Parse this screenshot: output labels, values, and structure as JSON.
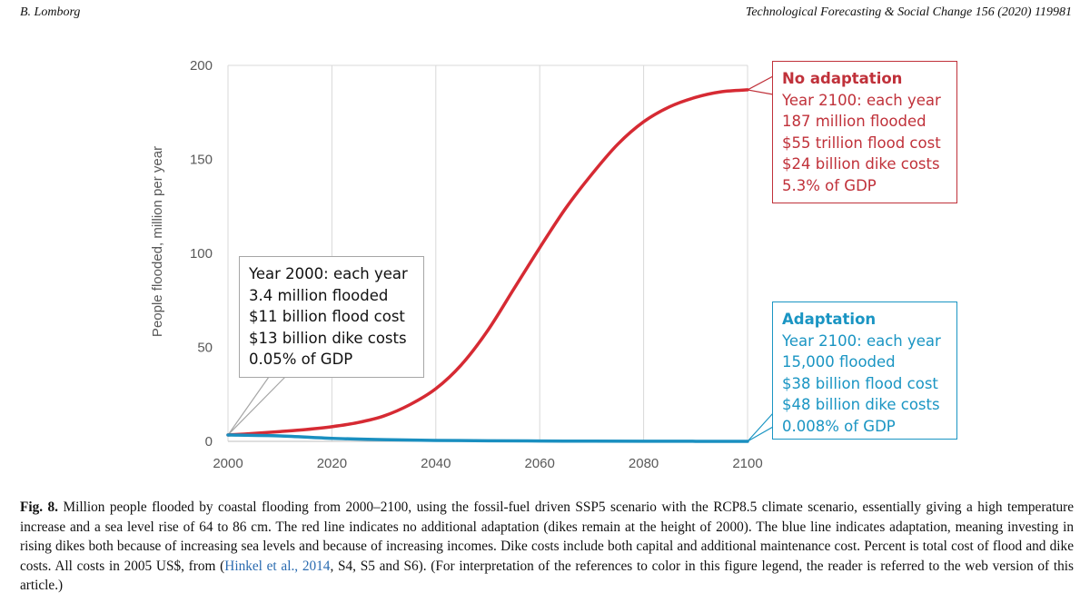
{
  "header": {
    "left": "B. Lomborg",
    "right": "Technological Forecasting & Social Change 156 (2020) 119981"
  },
  "chart_data": {
    "type": "line",
    "ylabel": "People flooded, million per year",
    "xlabel": "",
    "xlim": [
      2000,
      2100
    ],
    "ylim": [
      0,
      200
    ],
    "x_ticks": [
      2000,
      2020,
      2040,
      2060,
      2080,
      2100
    ],
    "y_ticks": [
      0,
      50,
      100,
      150,
      200
    ],
    "grid": "vertical",
    "series": [
      {
        "name": "No adaptation",
        "color": "#d62a33",
        "x": [
          2000,
          2005,
          2010,
          2015,
          2020,
          2025,
          2030,
          2035,
          2040,
          2045,
          2050,
          2055,
          2060,
          2065,
          2070,
          2075,
          2080,
          2085,
          2090,
          2095,
          2100
        ],
        "values": [
          3.4,
          4.2,
          5.2,
          6.3,
          7.8,
          10,
          13.5,
          19.5,
          28,
          41,
          59,
          81,
          103,
          124,
          142,
          158,
          170,
          178,
          183,
          186,
          187
        ]
      },
      {
        "name": "Adaptation",
        "color": "#1a8fc0",
        "x": [
          2000,
          2010,
          2020,
          2030,
          2040,
          2050,
          2060,
          2070,
          2080,
          2090,
          2100
        ],
        "values": [
          3.4,
          2.9,
          1.6,
          0.9,
          0.5,
          0.3,
          0.2,
          0.1,
          0.05,
          0.03,
          0.015
        ]
      }
    ]
  },
  "annotations": {
    "year2000": {
      "lines": [
        "Year 2000: each year",
        "3.4 million flooded",
        "$11 billion flood cost",
        "$13 billion dike costs",
        "0.05% of GDP"
      ]
    },
    "no_adaptation": {
      "title": "No adaptation",
      "lines": [
        "Year 2100: each year",
        "187 million flooded",
        "$55 trillion flood cost",
        "$24 billion dike costs",
        "5.3% of GDP"
      ]
    },
    "adaptation": {
      "title": "Adaptation",
      "lines": [
        "Year 2100: each year",
        "15,000 flooded",
        "$38 billion flood cost",
        "$48 billion dike costs",
        "0.008% of GDP"
      ]
    }
  },
  "caption": {
    "label": "Fig. 8.",
    "text1": " Million people flooded by coastal flooding from 2000–2100, using the fossil-fuel driven SSP5 scenario with the RCP8.5 climate scenario, essentially giving a high temperature increase and a sea level rise of 64 to 86 cm. The red line indicates no additional adaptation (dikes remain at the height of 2000). The blue line indicates adaptation, meaning investing in rising dikes both because of increasing sea levels and because of increasing incomes. Dike costs include both capital and additional maintenance cost. Percent is total cost of flood and dike costs. All costs in 2005 US$, from (",
    "ref": "Hinkel et al., 2014",
    "text2": ", S4, S5 and S6). (For interpretation of the references to color in this figure legend, the reader is referred to the web version of this article.)"
  }
}
